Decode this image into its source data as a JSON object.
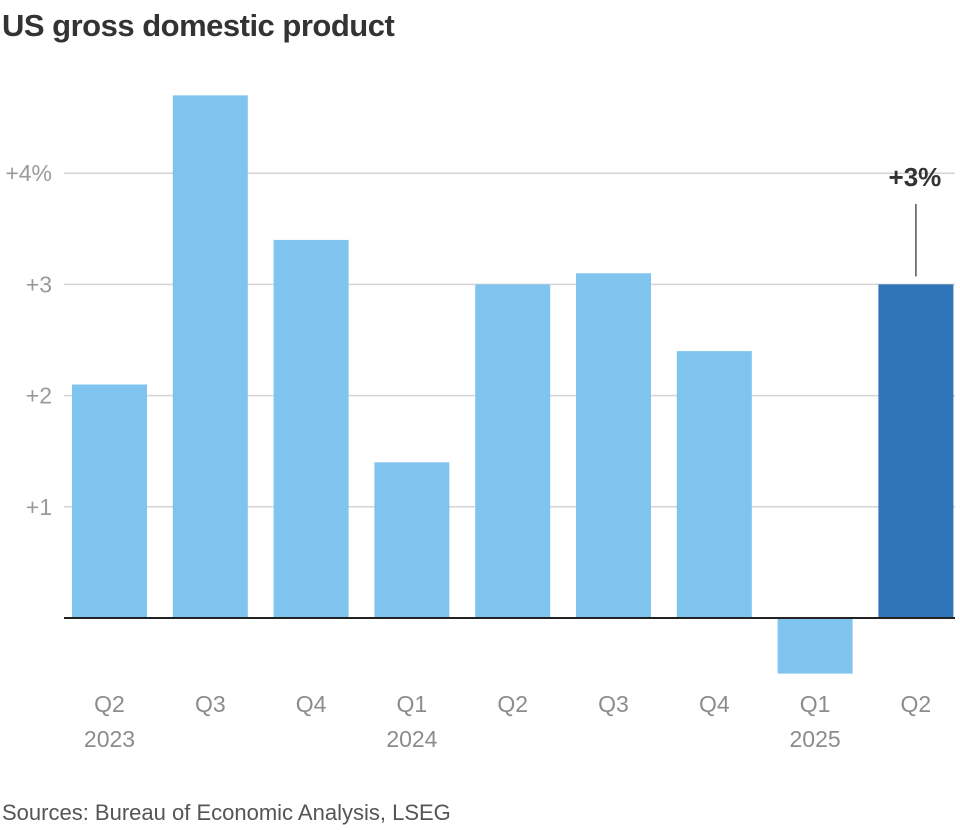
{
  "chart_data": {
    "type": "bar",
    "title": "US gross domestic product",
    "categories": [
      "Q2 2023",
      "Q3",
      "Q4",
      "Q1 2024",
      "Q2",
      "Q3",
      "Q4",
      "Q1 2025",
      "Q2"
    ],
    "category_lines": [
      [
        "Q2",
        "2023"
      ],
      [
        "Q3"
      ],
      [
        "Q4"
      ],
      [
        "Q1",
        "2024"
      ],
      [
        "Q2"
      ],
      [
        "Q3"
      ],
      [
        "Q4"
      ],
      [
        "Q1",
        "2025"
      ],
      [
        "Q2"
      ]
    ],
    "values": [
      2.1,
      4.7,
      3.4,
      1.4,
      3.0,
      3.1,
      2.4,
      -0.5,
      3.0
    ],
    "highlight_index": 8,
    "ylim": [
      -0.6,
      5.0
    ],
    "yticks": [
      1,
      2,
      3,
      4
    ],
    "ytick_labels": [
      "+1",
      "+2",
      "+3",
      "+4%"
    ],
    "xlabel": "",
    "ylabel": "",
    "grid": true,
    "annotation": {
      "index": 8,
      "text": "+3%"
    },
    "colors": {
      "bar": "#7fc4ef",
      "highlight": "#2f75b8",
      "grid": "#d4d4d4",
      "baseline": "#222222",
      "annotation_line": "#555555"
    }
  },
  "source": "Sources: Bureau of Economic Analysis, LSEG"
}
